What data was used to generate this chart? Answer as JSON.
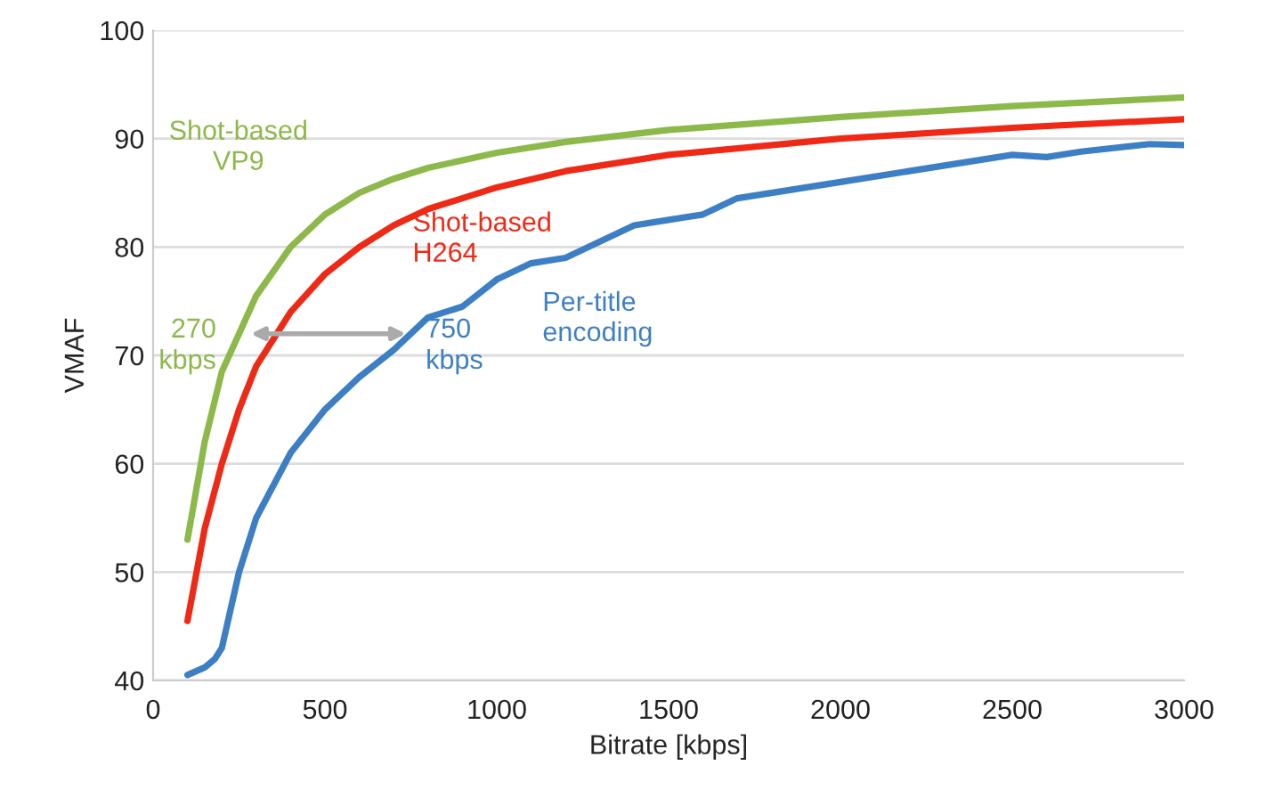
{
  "chart_data": {
    "type": "line",
    "xlabel": "Bitrate [kbps]",
    "ylabel": "VMAF",
    "xlim": [
      0,
      3000
    ],
    "xticks": [
      0,
      500,
      1000,
      1500,
      2000,
      2500,
      3000
    ],
    "ylim": [
      40,
      100
    ],
    "yticks": [
      40,
      50,
      60,
      70,
      80,
      90,
      100
    ],
    "grid": "y",
    "legend": false,
    "marker": "none",
    "line_style": "solid",
    "series": [
      {
        "name": "Shot-based\nVP9",
        "color": "#8db84a",
        "x": [
          100,
          150,
          200,
          250,
          300,
          400,
          500,
          600,
          700,
          800,
          1000,
          1200,
          1500,
          2000,
          2500,
          3000
        ],
        "values": [
          53,
          62,
          68.5,
          72,
          75.5,
          80,
          83,
          85,
          86.3,
          87.3,
          88.7,
          89.7,
          90.8,
          92,
          93,
          93.8
        ]
      },
      {
        "name": "Shot-based\nH264",
        "color": "#ee2a16",
        "x": [
          100,
          150,
          200,
          250,
          300,
          350,
          400,
          500,
          600,
          700,
          800,
          1000,
          1200,
          1500,
          2000,
          2500,
          3000
        ],
        "values": [
          45.5,
          54,
          60,
          65,
          69,
          71.5,
          74,
          77.5,
          80,
          82,
          83.5,
          85.5,
          87,
          88.5,
          90,
          91,
          91.8
        ]
      },
      {
        "name": "Per-title\nencoding",
        "color": "#3d7fc4",
        "x": [
          100,
          150,
          180,
          200,
          250,
          300,
          400,
          500,
          600,
          700,
          750,
          800,
          900,
          1000,
          1100,
          1200,
          1300,
          1400,
          1500,
          1600,
          1700,
          2000,
          2200,
          2500,
          2600,
          2700,
          2900,
          3000
        ],
        "values": [
          40.5,
          41.2,
          42,
          43,
          50,
          55,
          61,
          65,
          68,
          70.5,
          72,
          73.5,
          74.5,
          77,
          78.5,
          79,
          80.5,
          82,
          82.5,
          83,
          84.5,
          86,
          87,
          88.5,
          88.3,
          88.8,
          89.5,
          89.4
        ]
      }
    ],
    "annotations": [
      {
        "text": "270\nkbps",
        "x": 270,
        "y": 72
      },
      {
        "text": "750\nkbps",
        "x": 750,
        "y": 72
      }
    ]
  }
}
